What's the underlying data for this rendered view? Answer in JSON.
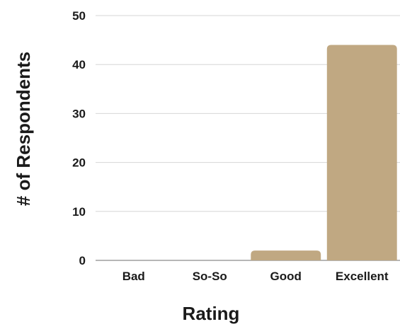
{
  "chart_data": {
    "type": "bar",
    "title": "",
    "xlabel": "Rating",
    "ylabel": "# of Respondents",
    "categories": [
      "Bad",
      "So-So",
      "Good",
      "Excellent"
    ],
    "values": [
      0,
      0,
      2,
      44
    ],
    "ylim": [
      0,
      50
    ],
    "yticks": [
      0,
      10,
      20,
      30,
      40,
      50
    ],
    "grid": true,
    "legend": "none",
    "bar_color": "#c0a882"
  }
}
